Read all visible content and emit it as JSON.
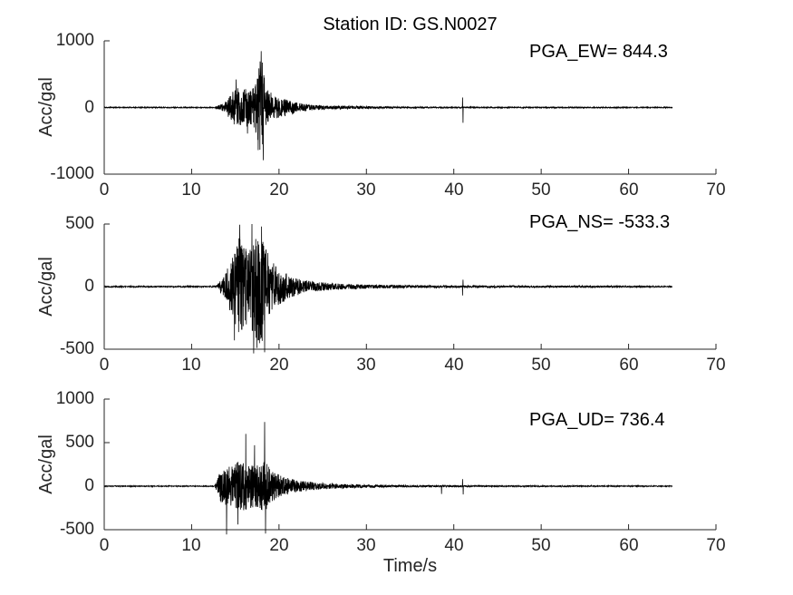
{
  "figure": {
    "title": "Station ID: GS.N0027",
    "xlabel": "Time/s",
    "background_color": "#ffffff",
    "trace_color": "#000000",
    "axis_color": "#262626"
  },
  "chart_data": [
    {
      "type": "line",
      "channel": "EW",
      "annotation": "PGA_EW= 844.3",
      "pga_gal": 844.3,
      "ylabel": "Acc/gal",
      "ylim": [
        -1000,
        1000
      ],
      "yticks": [
        -1000,
        0,
        1000
      ],
      "xlim": [
        0,
        70
      ],
      "xticks": [
        0,
        10,
        20,
        30,
        40,
        50,
        60,
        70
      ],
      "grid": false,
      "legend": "none",
      "t_start_s": 0,
      "t_end_s": 65,
      "envelope_gal_est": [
        [
          0,
          7
        ],
        [
          12.6,
          7
        ],
        [
          13,
          30
        ],
        [
          13.8,
          70
        ],
        [
          14.3,
          160
        ],
        [
          14.8,
          250
        ],
        [
          15.3,
          300
        ],
        [
          15.8,
          250
        ],
        [
          16.3,
          300
        ],
        [
          16.8,
          250
        ],
        [
          17.2,
          330
        ],
        [
          17.6,
          520
        ],
        [
          17.95,
          800
        ],
        [
          18.3,
          550
        ],
        [
          18.7,
          300
        ],
        [
          19.2,
          200
        ],
        [
          19.8,
          160
        ],
        [
          20.6,
          130
        ],
        [
          21.4,
          100
        ],
        [
          22.2,
          70
        ],
        [
          23.5,
          45
        ],
        [
          25,
          30
        ],
        [
          27,
          24
        ],
        [
          30,
          20
        ],
        [
          33,
          14
        ],
        [
          36,
          11
        ],
        [
          40,
          10
        ],
        [
          44,
          9
        ],
        [
          50,
          8
        ],
        [
          57,
          8
        ],
        [
          65,
          7
        ]
      ],
      "spikes_gal_est": [
        [
          17.95,
          844.3
        ],
        [
          18.2,
          -790
        ],
        [
          17.62,
          -640
        ],
        [
          15.1,
          420
        ],
        [
          16.4,
          -390
        ],
        [
          41,
          150
        ],
        [
          41.06,
          -230
        ]
      ],
      "seed": 11
    },
    {
      "type": "line",
      "channel": "NS",
      "annotation": "PGA_NS= -533.3",
      "pga_gal": -533.3,
      "ylabel": "Acc/gal",
      "ylim": [
        -500,
        500
      ],
      "yticks": [
        -500,
        0,
        500
      ],
      "xlim": [
        0,
        70
      ],
      "xticks": [
        0,
        10,
        20,
        30,
        40,
        50,
        60,
        70
      ],
      "grid": false,
      "legend": "none",
      "t_start_s": 0,
      "t_end_s": 65,
      "envelope_gal_est": [
        [
          0,
          5
        ],
        [
          12.6,
          5
        ],
        [
          13,
          25
        ],
        [
          13.8,
          90
        ],
        [
          14.4,
          200
        ],
        [
          14.9,
          300
        ],
        [
          15.4,
          420
        ],
        [
          15.9,
          350
        ],
        [
          16.4,
          300
        ],
        [
          16.9,
          380
        ],
        [
          17.4,
          450
        ],
        [
          17.8,
          470
        ],
        [
          18.2,
          420
        ],
        [
          18.6,
          300
        ],
        [
          19.2,
          200
        ],
        [
          19.9,
          150
        ],
        [
          20.7,
          110
        ],
        [
          21.5,
          85
        ],
        [
          22.5,
          60
        ],
        [
          24,
          40
        ],
        [
          26,
          28
        ],
        [
          28,
          20
        ],
        [
          31,
          15
        ],
        [
          35,
          11
        ],
        [
          40,
          9
        ],
        [
          44,
          8
        ],
        [
          50,
          7
        ],
        [
          57,
          7
        ],
        [
          65,
          5
        ]
      ],
      "spikes_gal_est": [
        [
          17.1,
          -533.3
        ],
        [
          18.35,
          -525
        ],
        [
          15.5,
          495
        ],
        [
          16.9,
          500
        ],
        [
          17.45,
          -490
        ],
        [
          14.9,
          -430
        ],
        [
          18.0,
          480
        ],
        [
          41,
          -70
        ],
        [
          41.05,
          55
        ]
      ],
      "seed": 22
    },
    {
      "type": "line",
      "channel": "UD",
      "annotation": "PGA_UD= 736.4",
      "pga_gal": 736.4,
      "ylabel": "Acc/gal",
      "ylim": [
        -500,
        1000
      ],
      "yticks": [
        -500,
        0,
        500,
        1000
      ],
      "xlim": [
        0,
        70
      ],
      "xticks": [
        0,
        10,
        20,
        30,
        40,
        50,
        60,
        70
      ],
      "grid": false,
      "legend": "none",
      "t_start_s": 0,
      "t_end_s": 65,
      "envelope_gal_est": [
        [
          0,
          5
        ],
        [
          12.6,
          5
        ],
        [
          12.9,
          60
        ],
        [
          13.3,
          180
        ],
        [
          13.8,
          230
        ],
        [
          14.3,
          250
        ],
        [
          14.9,
          270
        ],
        [
          15.5,
          290
        ],
        [
          16.1,
          280
        ],
        [
          16.7,
          250
        ],
        [
          17.3,
          260
        ],
        [
          17.9,
          270
        ],
        [
          18.4,
          290
        ],
        [
          18.9,
          210
        ],
        [
          19.5,
          160
        ],
        [
          20.2,
          125
        ],
        [
          21,
          95
        ],
        [
          22,
          70
        ],
        [
          23,
          55
        ],
        [
          24.5,
          40
        ],
        [
          26,
          30
        ],
        [
          28,
          22
        ],
        [
          30,
          17
        ],
        [
          33,
          13
        ],
        [
          36,
          11
        ],
        [
          40,
          10
        ],
        [
          44,
          8
        ],
        [
          48,
          7
        ],
        [
          55,
          7
        ],
        [
          60,
          6
        ],
        [
          65,
          5
        ]
      ],
      "spikes_gal_est": [
        [
          18.35,
          736.4
        ],
        [
          16.2,
          600
        ],
        [
          15.3,
          -440
        ],
        [
          17.2,
          470
        ],
        [
          14.0,
          -555
        ],
        [
          18.45,
          -545
        ],
        [
          38.6,
          -90
        ],
        [
          41,
          80
        ],
        [
          41.08,
          -95
        ]
      ],
      "seed": 33
    }
  ]
}
